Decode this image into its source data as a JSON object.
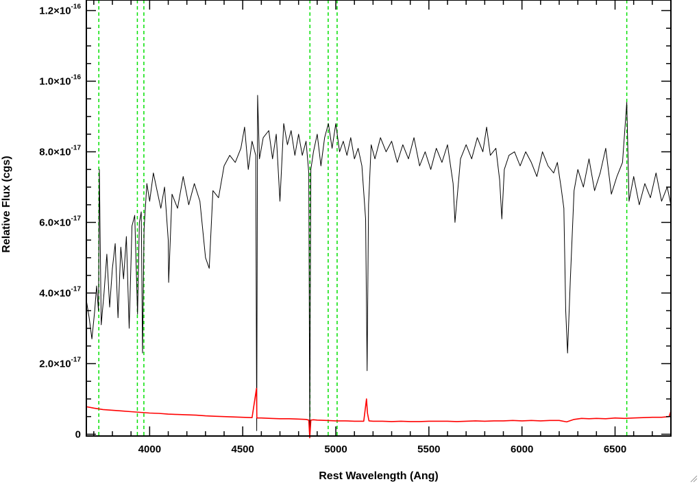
{
  "chart_data": {
    "type": "line",
    "xlabel": "Rest Wavelength (Ang)",
    "ylabel": "Relative Flux (cgs)",
    "xlim": [
      3660,
      6800
    ],
    "ylim": [
      -5e-19,
      1.23e-16
    ],
    "x_ticks": [
      {
        "value": 4000,
        "label": "4000"
      },
      {
        "value": 4500,
        "label": "4500"
      },
      {
        "value": 5000,
        "label": "5000"
      },
      {
        "value": 5500,
        "label": "5500"
      },
      {
        "value": 6000,
        "label": "6000"
      },
      {
        "value": 6500,
        "label": "6500"
      }
    ],
    "y_ticks": [
      {
        "value": 0,
        "mantissa": "0",
        "exponent": ""
      },
      {
        "value": 2e-17,
        "mantissa": "2.0×10",
        "exponent": "-17"
      },
      {
        "value": 4e-17,
        "mantissa": "4.0×10",
        "exponent": "-17"
      },
      {
        "value": 6e-17,
        "mantissa": "6.0×10",
        "exponent": "-17"
      },
      {
        "value": 8e-17,
        "mantissa": "8.0×10",
        "exponent": "-17"
      },
      {
        "value": 1e-16,
        "mantissa": "1.0×10",
        "exponent": "-16"
      },
      {
        "value": 1.2e-16,
        "mantissa": "1.2×10",
        "exponent": "-16"
      }
    ],
    "grid": false,
    "legend": "none",
    "reference_lines": [
      3727,
      3934,
      3969,
      4861,
      4959,
      5007,
      6563
    ],
    "reference_line_color": "#00e000",
    "series": [
      {
        "color": "#000000",
        "x": [
          3660,
          3675,
          3690,
          3705,
          3715,
          3725,
          3730,
          3740,
          3755,
          3770,
          3785,
          3800,
          3815,
          3830,
          3845,
          3860,
          3875,
          3890,
          3905,
          3920,
          3935,
          3945,
          3955,
          3962,
          3970,
          3985,
          4000,
          4020,
          4040,
          4060,
          4080,
          4100,
          4102,
          4120,
          4150,
          4180,
          4210,
          4240,
          4270,
          4300,
          4320,
          4340,
          4370,
          4400,
          4430,
          4460,
          4490,
          4510,
          4530,
          4550,
          4570,
          4575,
          4580,
          4590,
          4610,
          4640,
          4660,
          4680,
          4700,
          4720,
          4740,
          4760,
          4780,
          4800,
          4820,
          4840,
          4855,
          4860,
          4866,
          4880,
          4900,
          4920,
          4940,
          4960,
          4980,
          5000,
          5020,
          5040,
          5060,
          5080,
          5100,
          5120,
          5140,
          5160,
          5168,
          5176,
          5190,
          5210,
          5240,
          5270,
          5300,
          5330,
          5360,
          5390,
          5420,
          5450,
          5480,
          5510,
          5540,
          5570,
          5600,
          5630,
          5640,
          5650,
          5670,
          5700,
          5730,
          5760,
          5790,
          5810,
          5830,
          5860,
          5880,
          5892,
          5905,
          5930,
          5960,
          5990,
          6020,
          6050,
          6080,
          6110,
          6140,
          6170,
          6190,
          6210,
          6225,
          6235,
          6245,
          6260,
          6280,
          6300,
          6330,
          6360,
          6390,
          6420,
          6450,
          6480,
          6510,
          6540,
          6563,
          6575,
          6600,
          6630,
          6660,
          6690,
          6720,
          6750,
          6780,
          6800
        ],
        "y": [
          3.8e-17,
          3.3e-17,
          2.7e-17,
          3.5e-17,
          4.2e-17,
          3.5e-17,
          7.5e-17,
          3.1e-17,
          4e-17,
          5.1e-17,
          3.6e-17,
          4.7e-17,
          5.4e-17,
          3.3e-17,
          5.3e-17,
          4.4e-17,
          5.6e-17,
          3e-17,
          5.9e-17,
          6.2e-17,
          3.4e-17,
          6e-17,
          6.3e-17,
          2.3e-17,
          5.8e-17,
          7.1e-17,
          6.6e-17,
          7.4e-17,
          6.9e-17,
          6.4e-17,
          7e-17,
          5.5e-17,
          4.3e-17,
          6.8e-17,
          6.4e-17,
          7.3e-17,
          6.5e-17,
          7.1e-17,
          6.6e-17,
          5e-17,
          4.7e-17,
          6.9e-17,
          6.7e-17,
          7.6e-17,
          7.9e-17,
          7.7e-17,
          8.1e-17,
          8.7e-17,
          7.5e-17,
          8.3e-17,
          7.9e-17,
          1e-18,
          9.6e-17,
          7.8e-17,
          8.4e-17,
          8.6e-17,
          7.8e-17,
          8.5e-17,
          6.6e-17,
          8.8e-17,
          8.2e-17,
          8.6e-17,
          7.9e-17,
          8.5e-17,
          7.9e-17,
          8.3e-17,
          7.4e-17,
          0.0,
          7.5e-17,
          8e-17,
          8.5e-17,
          7.6e-17,
          8.4e-17,
          8.8e-17,
          8.1e-17,
          8.8e-17,
          8e-17,
          8.3e-17,
          7.9e-17,
          8.4e-17,
          7.8e-17,
          8.1e-17,
          7.6e-17,
          6.1e-17,
          1.8e-17,
          6.5e-17,
          8.2e-17,
          7.8e-17,
          8.4e-17,
          8e-17,
          8.3e-17,
          7.7e-17,
          8.2e-17,
          7.8e-17,
          8.4e-17,
          7.6e-17,
          8e-17,
          7.5e-17,
          8.1e-17,
          7.7e-17,
          8.2e-17,
          7.1e-17,
          6e-17,
          6.6e-17,
          7.8e-17,
          8.2e-17,
          7.8e-17,
          8.4e-17,
          8e-17,
          8.7e-17,
          7.9e-17,
          8.1e-17,
          7.2e-17,
          6.1e-17,
          7.5e-17,
          7.9e-17,
          8e-17,
          7.6e-17,
          8e-17,
          7.7e-17,
          7.3e-17,
          8e-17,
          7.6e-17,
          7.4e-17,
          7.7e-17,
          7e-17,
          6.4e-17,
          3.5e-17,
          2.3e-17,
          4.4e-17,
          6.9e-17,
          7.5e-17,
          7e-17,
          7.8e-17,
          6.9e-17,
          7.4e-17,
          8.1e-17,
          6.8e-17,
          7.3e-17,
          7.7e-17,
          9.4e-17,
          6.6e-17,
          7.3e-17,
          6.5e-17,
          7.1e-17,
          6.7e-17,
          7.4e-17,
          6.6e-17,
          7e-17,
          6.5e-17
        ]
      },
      {
        "color": "#ff0000",
        "x": [
          3660,
          3700,
          3750,
          3800,
          3850,
          3900,
          3950,
          4000,
          4050,
          4100,
          4150,
          4200,
          4250,
          4300,
          4350,
          4400,
          4450,
          4500,
          4550,
          4574,
          4576,
          4578,
          4600,
          4650,
          4700,
          4750,
          4800,
          4840,
          4855,
          4860,
          4866,
          4880,
          4900,
          4950,
          5000,
          5050,
          5100,
          5150,
          5165,
          5170,
          5178,
          5200,
          5250,
          5300,
          5350,
          5400,
          5450,
          5500,
          5550,
          5600,
          5650,
          5700,
          5750,
          5800,
          5850,
          5900,
          5950,
          6000,
          6050,
          6100,
          6150,
          6200,
          6240,
          6280,
          6320,
          6360,
          6400,
          6450,
          6500,
          6550,
          6600,
          6650,
          6700,
          6750,
          6790,
          6800
        ],
        "y": [
          7.8e-18,
          7.4e-18,
          7e-18,
          6.8e-18,
          6.6e-18,
          6.4e-18,
          6.2e-18,
          6e-18,
          5.9e-18,
          5.7e-18,
          5.6e-18,
          5.5e-18,
          5.4e-18,
          5.2e-18,
          5.1e-18,
          5e-18,
          4.9e-18,
          4.8e-18,
          4.7e-18,
          1.3e-17,
          4.7e-18,
          4.6e-18,
          4.6e-18,
          4.5e-18,
          4.4e-18,
          4.4e-18,
          4.3e-18,
          4.2e-18,
          4e-18,
          -1e-18,
          4e-18,
          4.1e-18,
          4e-18,
          3.9e-18,
          3.8e-18,
          3.8e-18,
          3.7e-18,
          3.7e-18,
          1e-17,
          6e-18,
          3.8e-18,
          3.7e-18,
          3.7e-18,
          3.6e-18,
          3.7e-18,
          3.6e-18,
          3.6e-18,
          3.7e-18,
          3.7e-18,
          3.7e-18,
          3.6e-18,
          3.7e-18,
          3.8e-18,
          3.7e-18,
          3.8e-18,
          3.8e-18,
          3.9e-18,
          3.8e-18,
          3.9e-18,
          3.8e-18,
          3.9e-18,
          3.9e-18,
          3.5e-18,
          4.2e-18,
          4.5e-18,
          4.4e-18,
          4.5e-18,
          4.4e-18,
          4.6e-18,
          4.5e-18,
          4.6e-18,
          4.7e-18,
          4.8e-18,
          4.8e-18,
          5e-18,
          6.5e-18
        ]
      }
    ]
  }
}
